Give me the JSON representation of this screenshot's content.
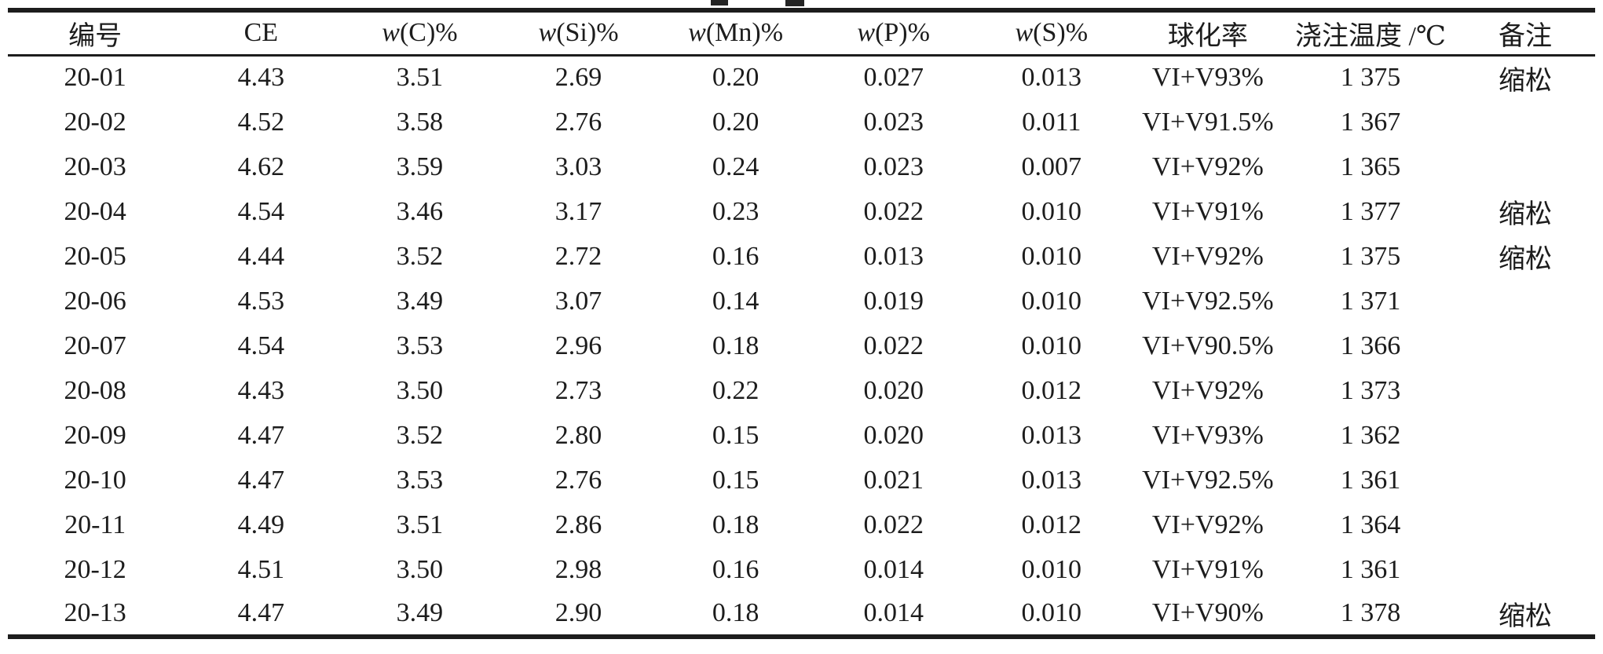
{
  "page": {
    "background": "#ffffff",
    "text_color": "#1c1c1c",
    "rule_color": "#1d1d1d"
  },
  "table": {
    "columns": [
      {
        "key": "sample-id",
        "label": "编号",
        "italic_w": false
      },
      {
        "key": "ce",
        "label": "CE",
        "italic_w": false
      },
      {
        "key": "w-c",
        "label": "w(C)%",
        "italic_w": true
      },
      {
        "key": "w-si",
        "label": "w(Si)%",
        "italic_w": true
      },
      {
        "key": "w-mn",
        "label": "w(Mn)%",
        "italic_w": true
      },
      {
        "key": "w-p",
        "label": "w(P)%",
        "italic_w": true
      },
      {
        "key": "w-s",
        "label": "w(S)%",
        "italic_w": true
      },
      {
        "key": "spheroidization-rate",
        "label": "球化率",
        "italic_w": false
      },
      {
        "key": "pouring-temperature",
        "label": "浇注温度 /℃",
        "italic_w": false
      },
      {
        "key": "remarks",
        "label": "备注",
        "italic_w": false
      }
    ],
    "column_widths_pct": [
      11.0,
      9.9,
      10.1,
      9.9,
      9.9,
      10.0,
      9.9,
      9.8,
      10.7,
      8.8
    ],
    "rows": [
      [
        "20-01",
        "4.43",
        "3.51",
        "2.69",
        "0.20",
        "0.027",
        "0.013",
        "VI+V93%",
        "1 375",
        "缩松"
      ],
      [
        "20-02",
        "4.52",
        "3.58",
        "2.76",
        "0.20",
        "0.023",
        "0.011",
        "VI+V91.5%",
        "1 367",
        ""
      ],
      [
        "20-03",
        "4.62",
        "3.59",
        "3.03",
        "0.24",
        "0.023",
        "0.007",
        "VI+V92%",
        "1 365",
        ""
      ],
      [
        "20-04",
        "4.54",
        "3.46",
        "3.17",
        "0.23",
        "0.022",
        "0.010",
        "VI+V91%",
        "1 377",
        "缩松"
      ],
      [
        "20-05",
        "4.44",
        "3.52",
        "2.72",
        "0.16",
        "0.013",
        "0.010",
        "VI+V92%",
        "1 375",
        "缩松"
      ],
      [
        "20-06",
        "4.53",
        "3.49",
        "3.07",
        "0.14",
        "0.019",
        "0.010",
        "VI+V92.5%",
        "1 371",
        ""
      ],
      [
        "20-07",
        "4.54",
        "3.53",
        "2.96",
        "0.18",
        "0.022",
        "0.010",
        "VI+V90.5%",
        "1 366",
        ""
      ],
      [
        "20-08",
        "4.43",
        "3.50",
        "2.73",
        "0.22",
        "0.020",
        "0.012",
        "VI+V92%",
        "1 373",
        ""
      ],
      [
        "20-09",
        "4.47",
        "3.52",
        "2.80",
        "0.15",
        "0.020",
        "0.013",
        "VI+V93%",
        "1 362",
        ""
      ],
      [
        "20-10",
        "4.47",
        "3.53",
        "2.76",
        "0.15",
        "0.021",
        "0.013",
        "VI+V92.5%",
        "1 361",
        ""
      ],
      [
        "20-11",
        "4.49",
        "3.51",
        "2.86",
        "0.18",
        "0.022",
        "0.012",
        "VI+V92%",
        "1 364",
        ""
      ],
      [
        "20-12",
        "4.51",
        "3.50",
        "2.98",
        "0.16",
        "0.014",
        "0.010",
        "VI+V91%",
        "1 361",
        ""
      ],
      [
        "20-13",
        "4.47",
        "3.49",
        "2.90",
        "0.18",
        "0.014",
        "0.010",
        "VI+V90%",
        "1 378",
        "缩松"
      ]
    ]
  }
}
